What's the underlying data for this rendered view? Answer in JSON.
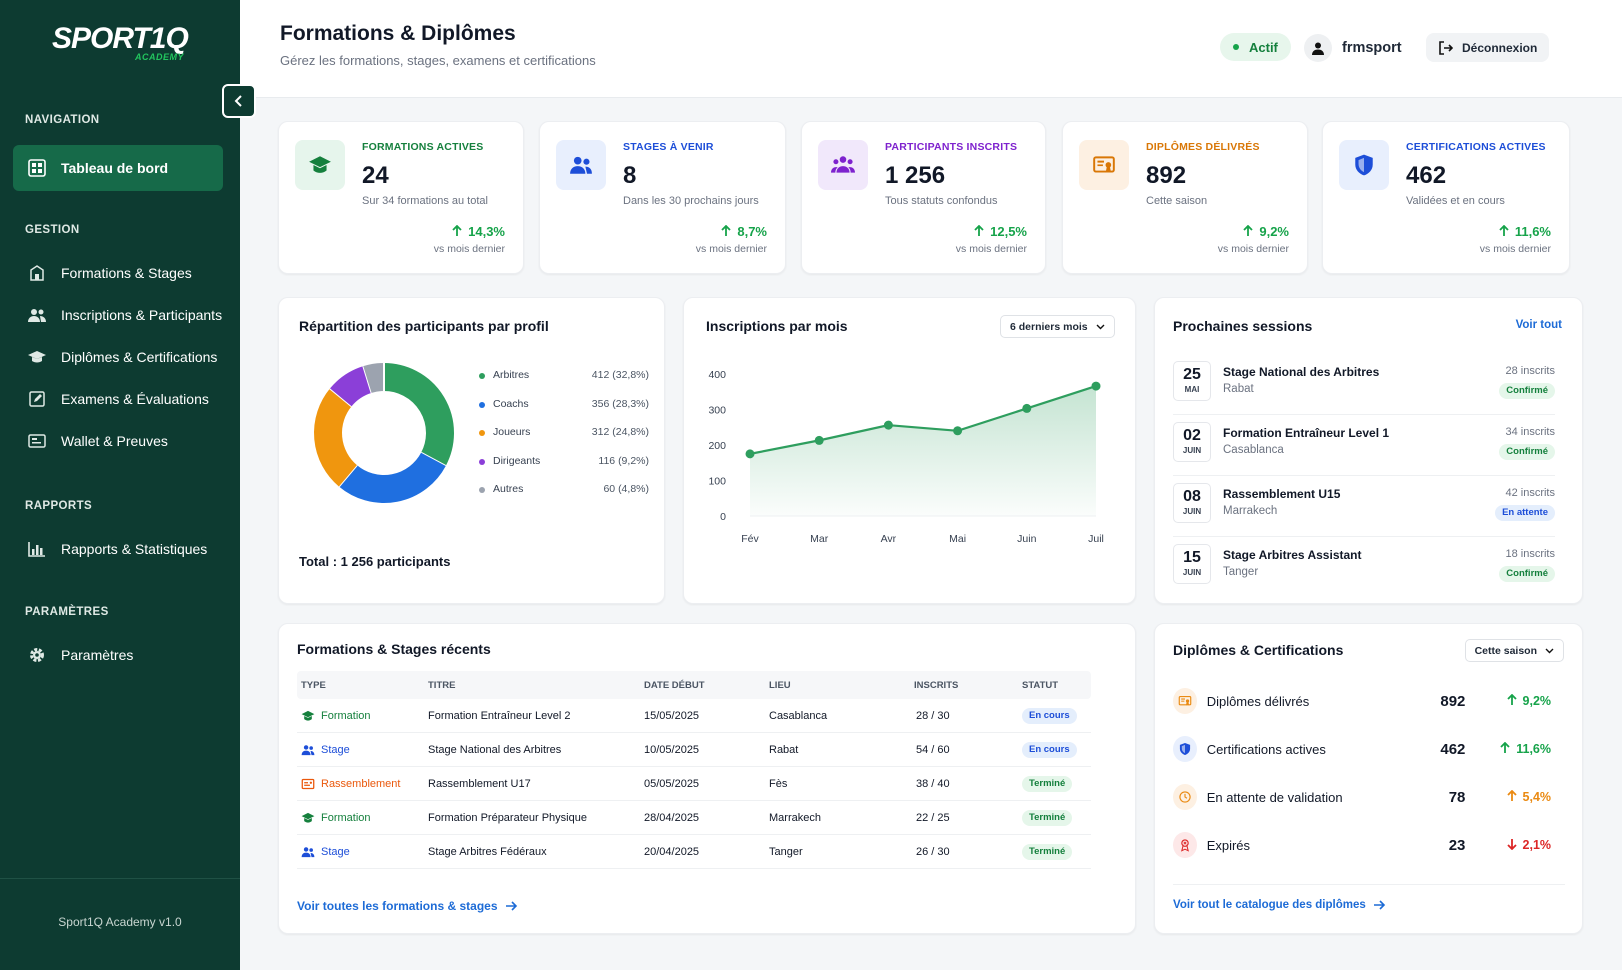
{
  "sidebar": {
    "logo_word": "SPORT1Q",
    "logo_sub": "ACADEMY",
    "sections": {
      "navigation": "NAVIGATION",
      "gestion": "GESTION",
      "rapports": "RAPPORTS",
      "parametres": "PARAMÈTRES"
    },
    "items": {
      "dashboard": "Tableau de bord",
      "formations": "Formations & Stages",
      "inscriptions": "Inscriptions & Participants",
      "diplomes": "Diplômes & Certifications",
      "examens": "Examens & Évaluations",
      "wallet": "Wallet & Preuves",
      "rapports": "Rapports & Statistiques",
      "parametres": "Paramètres"
    },
    "footer": "Sport1Q Academy v1.0"
  },
  "header": {
    "title": "Formations & Diplômes",
    "subtitle": "Gérez les formations, stages, examens et certifications",
    "status": "Actif",
    "user": "frmsport",
    "logout": "Déconnexion"
  },
  "kpis": [
    {
      "label": "FORMATIONS ACTIVES",
      "value": "24",
      "sub": "Sur 34 formations au total",
      "trend": "14,3%",
      "vs": "vs mois dernier",
      "color": "#15803d",
      "bg": "#e6f5ec",
      "icon": "graduation-cap-icon"
    },
    {
      "label": "STAGES À VENIR",
      "value": "8",
      "sub": "Dans les 30 prochains jours",
      "trend": "8,7%",
      "vs": "vs mois dernier",
      "color": "#1d4ed8",
      "bg": "#e8effd",
      "icon": "users-icon"
    },
    {
      "label": "PARTICIPANTS INSCRITS",
      "value": "1 256",
      "sub": "Tous statuts confondus",
      "trend": "12,5%",
      "vs": "vs mois dernier",
      "color": "#7e22ce",
      "bg": "#f1e8fb",
      "icon": "group-icon"
    },
    {
      "label": "DIPLÔMES DÉLIVRÉS",
      "value": "892",
      "sub": "Cette saison",
      "trend": "9,2%",
      "vs": "vs mois dernier",
      "color": "#d97706",
      "bg": "#fdf0e2",
      "icon": "certificate-icon"
    },
    {
      "label": "CERTIFICATIONS ACTIVES",
      "value": "462",
      "sub": "Validées et en cours",
      "trend": "11,6%",
      "vs": "vs mois dernier",
      "color": "#1d4ed8",
      "bg": "#e8effd",
      "icon": "shield-icon"
    }
  ],
  "donut": {
    "title": "Répartition des participants par profil",
    "total": "Total : 1 256 participants",
    "items": [
      {
        "name": "Arbitres",
        "label": "412 (32,8%)",
        "value": 412,
        "color": "#2e9e5e"
      },
      {
        "name": "Coachs",
        "label": "356 (28,3%)",
        "value": 356,
        "color": "#1f6fe0"
      },
      {
        "name": "Joueurs",
        "label": "312 (24,8%)",
        "value": 312,
        "color": "#f0960e"
      },
      {
        "name": "Dirigeants",
        "label": "116 (9,2%)",
        "value": 116,
        "color": "#8b3fd8"
      },
      {
        "name": "Autres",
        "label": "60 (4,8%)",
        "value": 60,
        "color": "#9ca3af"
      }
    ]
  },
  "chart_data": {
    "type": "area",
    "title": "Inscriptions par mois",
    "period": "6 derniers mois",
    "categories": [
      "Fév",
      "Mar",
      "Avr",
      "Mai",
      "Juin",
      "Juil"
    ],
    "values": [
      175,
      213,
      256,
      240,
      303,
      366
    ],
    "yticks": [
      "0",
      "100",
      "200",
      "300",
      "400"
    ],
    "ylim": [
      0,
      400
    ],
    "color": "#2e9e5e"
  },
  "sessions": {
    "title": "Prochaines sessions",
    "link": "Voir tout",
    "items": [
      {
        "day": "25",
        "month": "MAI",
        "title": "Stage National des Arbitres",
        "location": "Rabat",
        "count": "28 inscrits",
        "status": "Confirmé",
        "tone": "green"
      },
      {
        "day": "02",
        "month": "JUIN",
        "title": "Formation Entraîneur Level 1",
        "location": "Casablanca",
        "count": "34 inscrits",
        "status": "Confirmé",
        "tone": "green"
      },
      {
        "day": "08",
        "month": "JUIN",
        "title": "Rassemblement U15",
        "location": "Marrakech",
        "count": "42 inscrits",
        "status": "En attente",
        "tone": "blue"
      },
      {
        "day": "15",
        "month": "JUIN",
        "title": "Stage Arbitres Assistant",
        "location": "Tanger",
        "count": "18 inscrits",
        "status": "Confirmé",
        "tone": "green"
      }
    ]
  },
  "recent": {
    "title": "Formations & Stages récents",
    "columns": [
      "TYPE",
      "TITRE",
      "DATE DÉBUT",
      "LIEU",
      "INSCRITS",
      "STATUT"
    ],
    "rows": [
      {
        "type": "Formation",
        "title": "Formation Entraîneur Level 2",
        "date": "15/05/2025",
        "place": "Casablanca",
        "count": "28 / 30",
        "status": "En cours",
        "tone": "blue",
        "color": "#15803d",
        "icon": "graduation-cap-icon"
      },
      {
        "type": "Stage",
        "title": "Stage National des Arbitres",
        "date": "10/05/2025",
        "place": "Rabat",
        "count": "54 / 60",
        "status": "En cours",
        "tone": "blue",
        "color": "#1d4ed8",
        "icon": "users-icon"
      },
      {
        "type": "Rassemblement",
        "title": "Rassemblement U17",
        "date": "05/05/2025",
        "place": "Fès",
        "count": "38 / 40",
        "status": "Terminé",
        "tone": "green",
        "color": "#ea580c",
        "icon": "clipboard-icon"
      },
      {
        "type": "Formation",
        "title": "Formation Préparateur Physique",
        "date": "28/04/2025",
        "place": "Marrakech",
        "count": "22 / 25",
        "status": "Terminé",
        "tone": "green",
        "color": "#15803d",
        "icon": "graduation-cap-icon"
      },
      {
        "type": "Stage",
        "title": "Stage Arbitres Fédéraux",
        "date": "20/04/2025",
        "place": "Tanger",
        "count": "26 / 30",
        "status": "Terminé",
        "tone": "green",
        "color": "#1d4ed8",
        "icon": "users-icon"
      }
    ],
    "link": "Voir toutes les formations & stages"
  },
  "diplomas": {
    "title": "Diplômes & Certifications",
    "period": "Cette saison",
    "items": [
      {
        "label": "Diplômes délivrés",
        "value": "892",
        "trend": "9,2%",
        "dir": "up",
        "color": "#16a34a",
        "icolor": "#ea8a12",
        "ibg": "#fdf0e2",
        "icon": "certificate-icon"
      },
      {
        "label": "Certifications actives",
        "value": "462",
        "trend": "11,6%",
        "dir": "up",
        "color": "#16a34a",
        "icolor": "#1d4ed8",
        "ibg": "#e8effd",
        "icon": "shield-icon"
      },
      {
        "label": "En attente de validation",
        "value": "78",
        "trend": "5,4%",
        "dir": "up",
        "color": "#ea8a12",
        "icolor": "#ea8a12",
        "ibg": "#fdf0e2",
        "icon": "clock-icon"
      },
      {
        "label": "Expirés",
        "value": "23",
        "trend": "2,1%",
        "dir": "down",
        "color": "#dc2626",
        "icolor": "#dc2626",
        "ibg": "#fde8e8",
        "icon": "expired-badge-icon"
      }
    ],
    "link": "Voir tout le catalogue des diplômes"
  }
}
